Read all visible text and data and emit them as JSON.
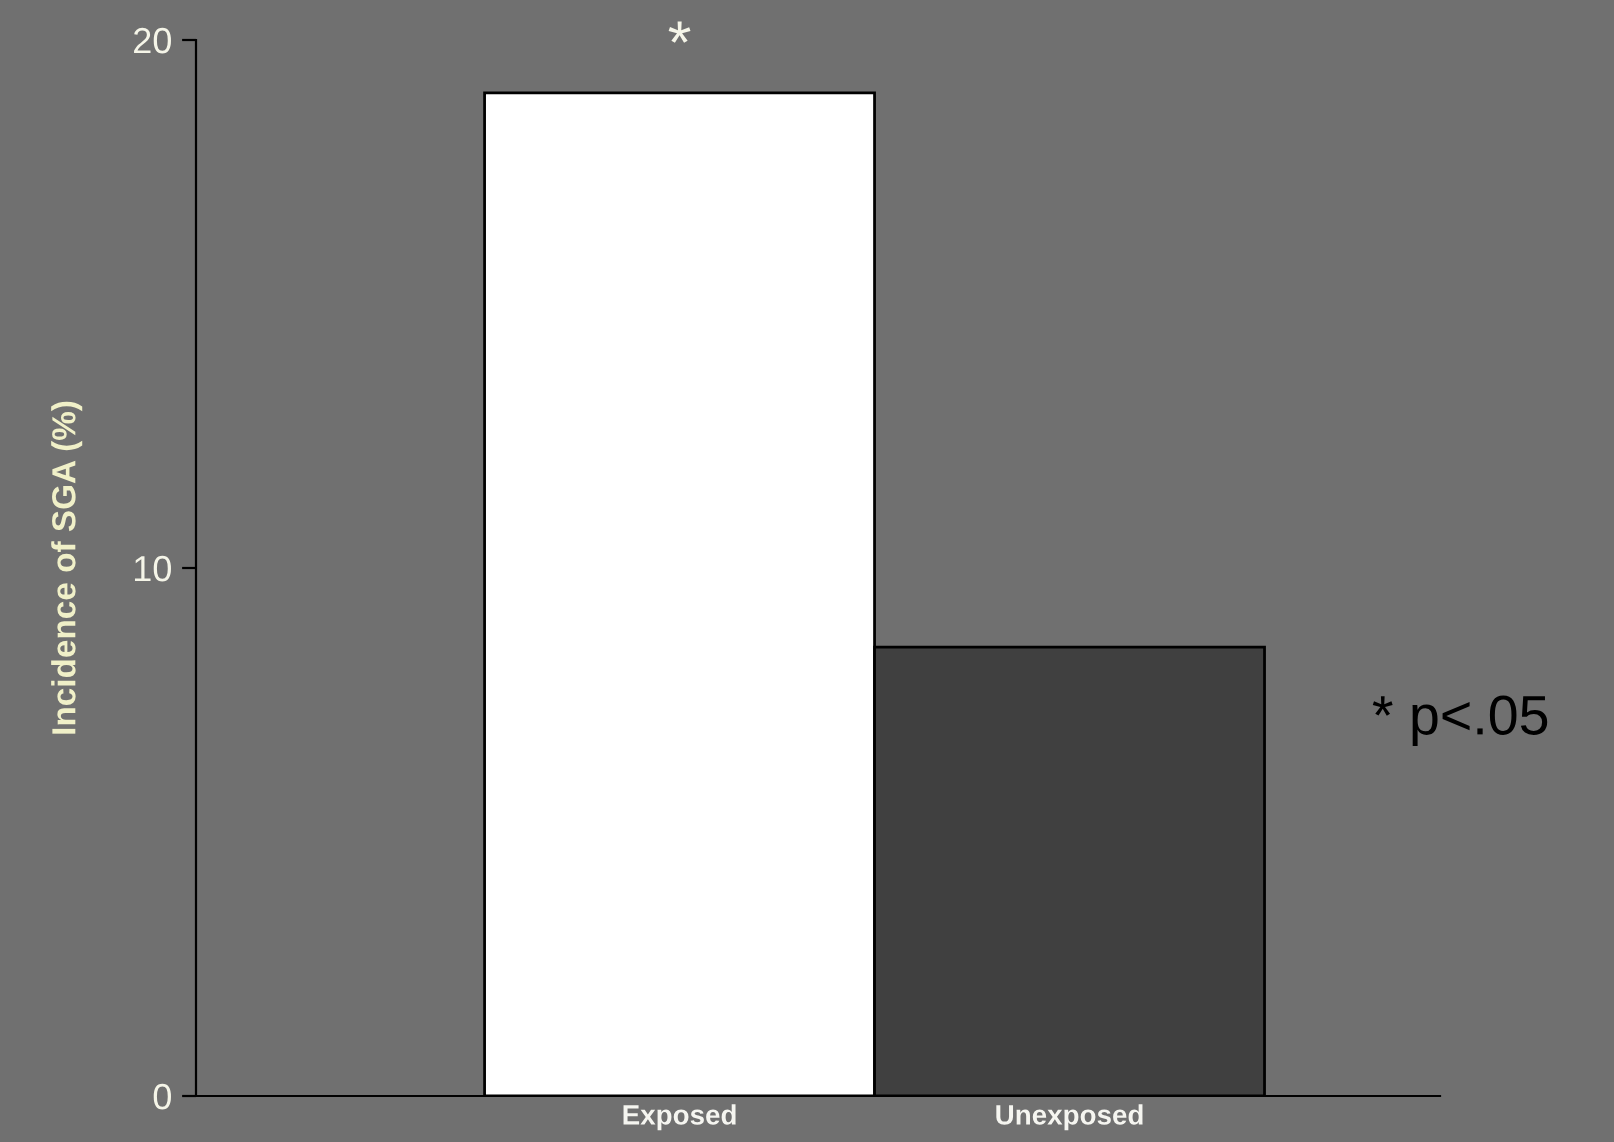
{
  "chart_data": {
    "type": "bar",
    "ylabel": "Incidence of SGA (%)",
    "categories": [
      "Exposed",
      "Unexposed"
    ],
    "values": [
      19,
      8.5
    ],
    "colors": [
      "#ffffff",
      "#404040"
    ],
    "ylim": [
      0,
      20
    ],
    "yticks": [
      0,
      10,
      20
    ],
    "grid": false,
    "legend": false,
    "annotations": [
      {
        "text": "*",
        "x": "Exposed",
        "y": 19
      },
      "* p<.05"
    ]
  }
}
